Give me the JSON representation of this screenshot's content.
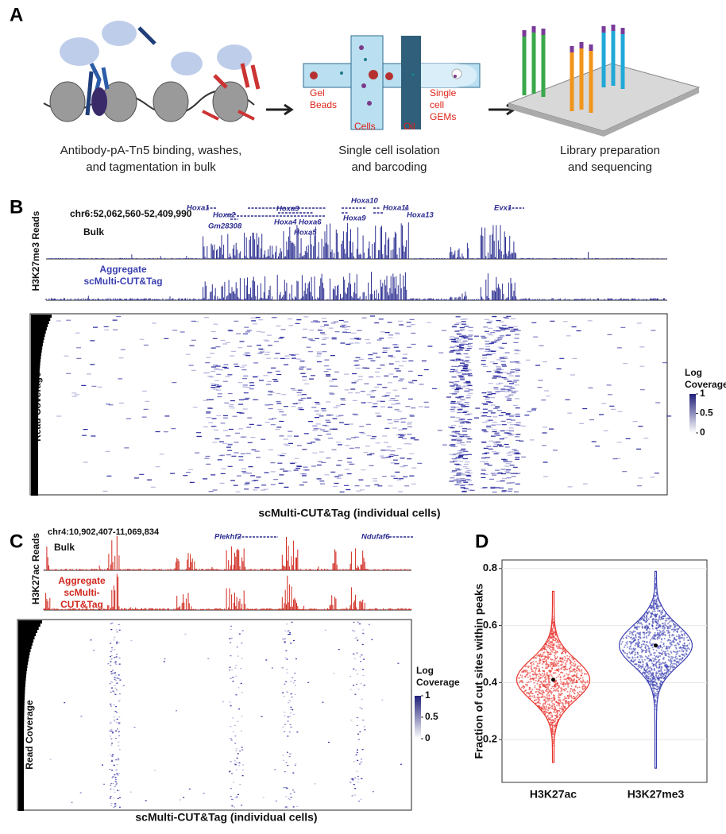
{
  "panels": {
    "a": {
      "label": "A",
      "captions": [
        [
          "Antibody-pA-Tn5 binding, washes,",
          "and tagmentation in bulk"
        ],
        [
          "Single cell isolation",
          "and barcoding"
        ],
        [
          "Library preparation",
          "and sequencing"
        ]
      ],
      "chip_labels": {
        "gel_beads": [
          "Gel",
          "Beads"
        ],
        "cells": "Cells",
        "oil": "Oil",
        "gems": [
          "Single",
          "cell",
          "GEMs"
        ]
      }
    },
    "b": {
      "label": "B",
      "y_label": "H3K27me3 Reads",
      "locus": "chr6:52,062,560-52,409,990",
      "genes": [
        "Hoxa1",
        "Hoxa2",
        "Gm28308",
        "Hoxa3",
        "Hoxa4",
        "Hoxa6",
        "Hoxa5",
        "Hoxa10",
        "Hoxa9",
        "Hoxa11",
        "Hoxa13",
        "Evx1"
      ],
      "bulk": "Bulk",
      "aggregate": [
        "Aggregate",
        "scMulti-CUT&Tag"
      ],
      "heatmap_y_label": "Read Coverage",
      "x_label": "scMulti-CUT&Tag (individual cells)",
      "colorbar": {
        "title": [
          "Log",
          "Coverage"
        ],
        "ticks": [
          1,
          0.5,
          0
        ]
      }
    },
    "c": {
      "label": "C",
      "y_label": "H3K27ac Reads",
      "locus": "chr4:10,902,407-11,069,834",
      "genes": [
        "Plekhf2",
        "Ndufaf6"
      ],
      "bulk": "Bulk",
      "aggregate": [
        "Aggregate",
        "scMulti-",
        "CUT&Tag"
      ],
      "heatmap_y_label": "Read Coverage",
      "x_label": "scMulti-CUT&Tag (individual cells)",
      "colorbar": {
        "title": [
          "Log",
          "Coverage"
        ],
        "ticks": [
          1,
          0.5,
          0
        ]
      }
    },
    "d": {
      "label": "D"
    }
  },
  "chart_data": {
    "type": "violin",
    "y_label": "Fraction of cut sites within peaks",
    "categories": [
      "H3K27ac",
      "H3K27me3"
    ],
    "values": [
      0.41,
      0.53
    ],
    "ranges": [
      [
        0.12,
        0.72
      ],
      [
        0.1,
        0.79
      ]
    ],
    "colors": [
      "#e8312a",
      "#3b3fb0"
    ],
    "ylim": [
      0.05,
      0.83
    ],
    "yticks": [
      0.2,
      0.4,
      0.6,
      0.8
    ],
    "grid": true
  }
}
